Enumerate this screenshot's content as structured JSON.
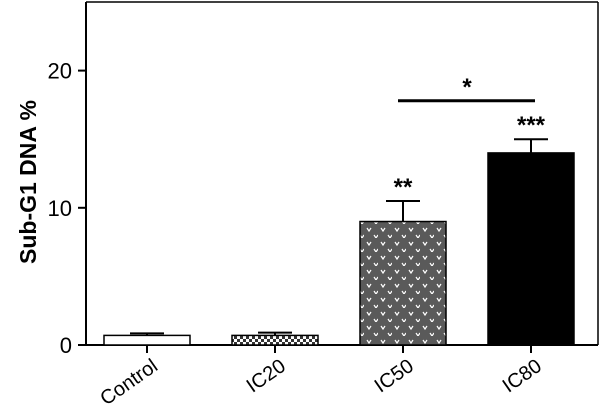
{
  "chart_data": {
    "type": "bar",
    "title": "",
    "xlabel": "",
    "ylabel": "Sub-G1 DNA %",
    "ylim": [
      0,
      25
    ],
    "yticks": [
      0,
      10,
      20
    ],
    "grid": false,
    "categories": [
      "Control",
      "IC20",
      "IC50",
      "IC80"
    ],
    "values": [
      0.7,
      0.7,
      9.0,
      14.0
    ],
    "errors": [
      0.15,
      0.2,
      1.5,
      1.0
    ],
    "fills": [
      "white",
      "checker",
      "dotted-grey",
      "black"
    ],
    "significance": [
      {
        "category": "IC50",
        "label": "**"
      },
      {
        "category": "IC80",
        "label": "***"
      }
    ],
    "comparison": {
      "from": "IC50",
      "to": "IC80",
      "y": 17.8,
      "label": "*"
    }
  }
}
